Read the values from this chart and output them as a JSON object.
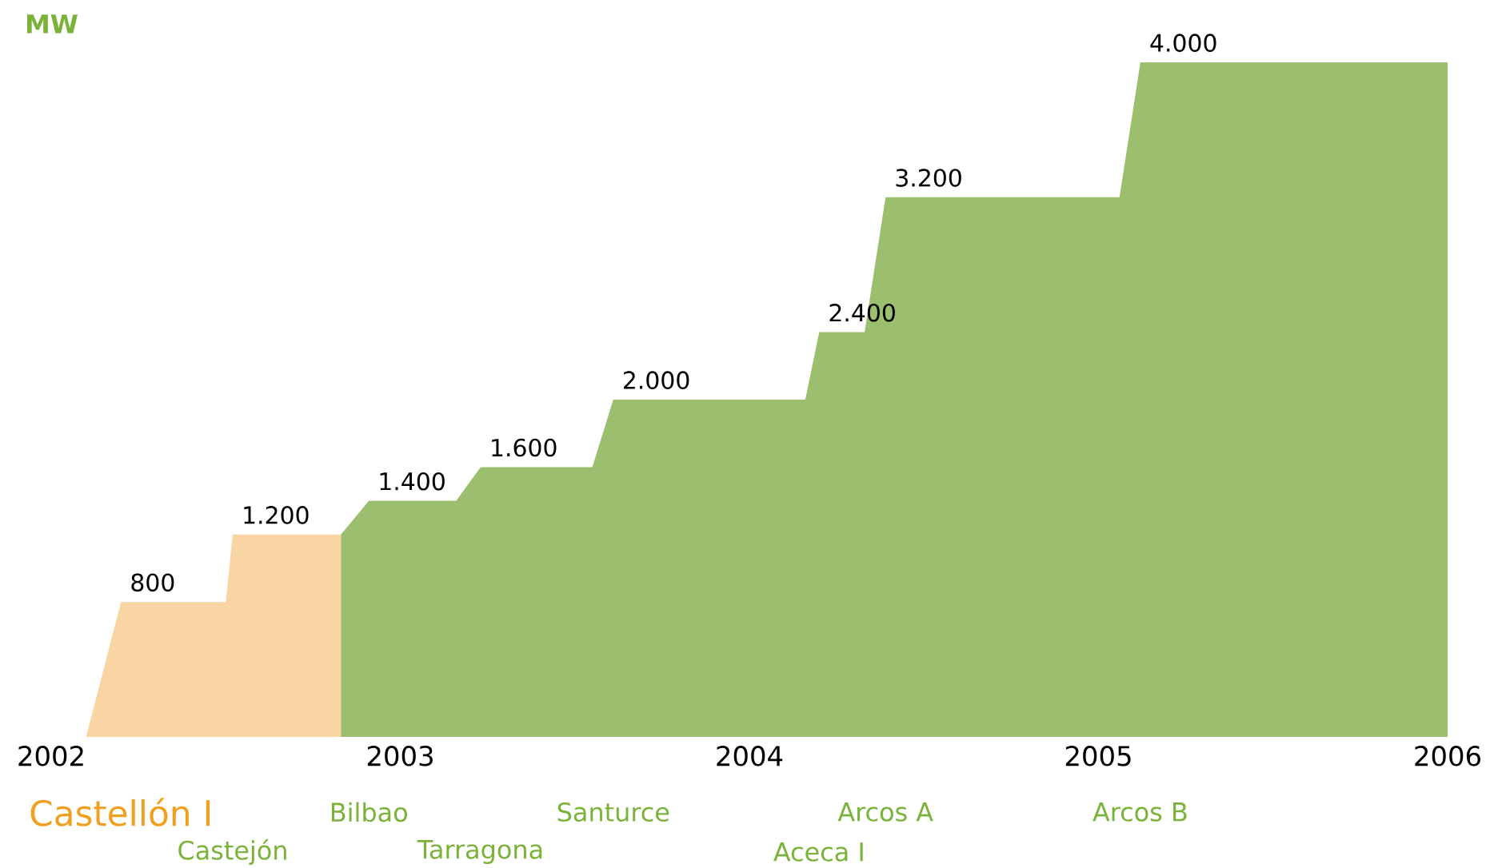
{
  "chart_data": {
    "type": "area",
    "xlim": [
      2002,
      2006
    ],
    "xticks": [
      2002,
      2003,
      2004,
      2005,
      2006
    ],
    "tick_labels": "x",
    "grid": false,
    "series": [
      {
        "color": "#f8d5a3",
        "x": [
          2002.1,
          2002.2,
          2002.5,
          2002.52,
          2002.83
        ],
        "values": [
          0,
          800,
          800,
          1200,
          1200
        ],
        "value_labels": [
          null,
          "800",
          null,
          "1.200",
          null
        ]
      },
      {
        "color": "#9bbf6e",
        "x": [
          2002.83,
          2002.91,
          2003.16,
          2003.23,
          2003.55,
          2003.61,
          2004.16,
          2004.2,
          2004.33,
          2004.39,
          2005.06,
          2005.12,
          2006
        ],
        "values": [
          1200,
          1400,
          1400,
          1600,
          1600,
          2000,
          2000,
          2400,
          2400,
          3200,
          3200,
          4000,
          4000
        ],
        "value_labels": [
          null,
          "1.400",
          null,
          "1.600",
          null,
          "2.000",
          null,
          "2.400",
          null,
          "3.200",
          null,
          "4.000",
          null
        ]
      }
    ],
    "annotations": [
      "MW",
      "Castellón I",
      "Castejón",
      "Bilbao",
      "Tarragona",
      "Santurce",
      "Aceca I",
      "Arcos A",
      "Arcos B"
    ]
  }
}
